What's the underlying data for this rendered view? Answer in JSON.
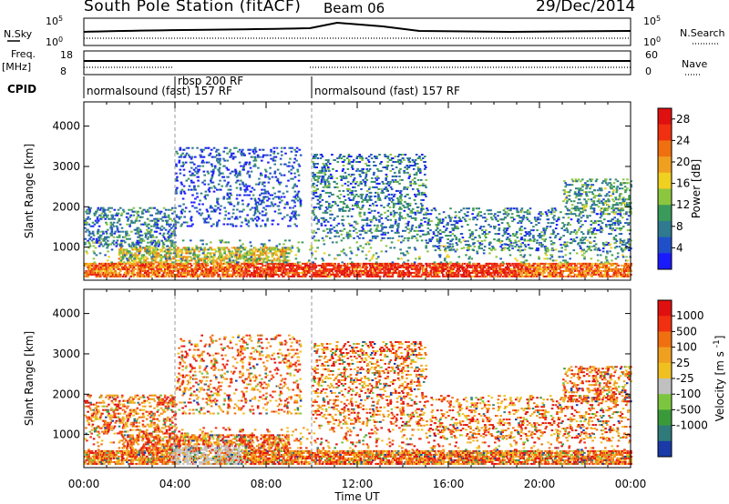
{
  "header": {
    "title": "South Pole Station (fitACF)",
    "beam": "Beam 06",
    "date": "29/Dec/2014"
  },
  "strip_labels": {
    "nsky": "N.Sky",
    "nsearch": "N.Search",
    "freq": "Freq.",
    "freq_unit": "[MHz]",
    "nave": "Nave",
    "cpid": "CPID",
    "noise_ticks_left": [
      "10^5",
      "10^0"
    ],
    "noise_ticks_right": [
      "10^5",
      "10^0"
    ],
    "freq_ticks": [
      "18",
      "8"
    ],
    "nave_ticks": [
      "60",
      "0"
    ]
  },
  "cpid_segments": [
    {
      "label": "normalsound (fast) 157 RF",
      "start": 0,
      "end": 4
    },
    {
      "label": "rbsp 200 RF",
      "start": 4,
      "end": 10
    },
    {
      "label": "normalsound (fast) 157 RF",
      "start": 10,
      "end": 24
    }
  ],
  "chart_data": [
    {
      "type": "heatmap",
      "title": "",
      "xlabel": "",
      "ylabel": "Slant Range [km]",
      "xlim": [
        0,
        24
      ],
      "ylim": [
        180,
        4600
      ],
      "yticks": [
        1000,
        2000,
        3000,
        4000
      ],
      "colorbar": {
        "label": "Power [dB]",
        "ticks": [
          "4",
          "8",
          "12",
          "16",
          "20",
          "24",
          "28"
        ],
        "colors": [
          "#1a1aff",
          "#2050c8",
          "#2f7a8f",
          "#3a9a5a",
          "#8cc63f",
          "#f0d020",
          "#f0a020",
          "#f07010",
          "#f03010",
          "#e01010"
        ]
      }
    },
    {
      "type": "heatmap",
      "title": "",
      "xlabel": "Time UT",
      "ylabel": "Slant Range [km]",
      "xlim": [
        0,
        24
      ],
      "ylim": [
        180,
        4600
      ],
      "yticks": [
        1000,
        2000,
        3000,
        4000
      ],
      "xticks": [
        "00:00",
        "04:00",
        "08:00",
        "12:00",
        "16:00",
        "20:00",
        "00:00"
      ],
      "colorbar": {
        "label": "Velocity [m s",
        "label_sup": "-1",
        "label_end": "]",
        "ticks": [
          "1000",
          "500",
          "100",
          "25",
          "-25",
          "-100",
          "-500",
          "-1000"
        ],
        "colors": [
          "#1a3aa8",
          "#2f7a7a",
          "#3a9a3a",
          "#7cc63f",
          "#c0c0c0",
          "#f0c020",
          "#f0a020",
          "#f07010",
          "#f03010",
          "#e01010"
        ]
      }
    }
  ]
}
